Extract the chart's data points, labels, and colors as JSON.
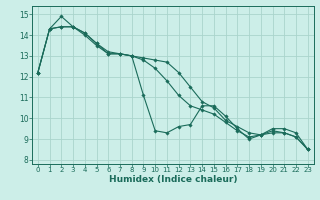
{
  "xlabel": "Humidex (Indice chaleur)",
  "background_color": "#cceee8",
  "grid_color": "#aad4cc",
  "line_color": "#1a6b5a",
  "xlim": [
    -0.5,
    23.5
  ],
  "ylim": [
    7.8,
    15.4
  ],
  "yticks": [
    8,
    9,
    10,
    11,
    12,
    13,
    14,
    15
  ],
  "xticks": [
    0,
    1,
    2,
    3,
    4,
    5,
    6,
    7,
    8,
    9,
    10,
    11,
    12,
    13,
    14,
    15,
    16,
    17,
    18,
    19,
    20,
    21,
    22,
    23
  ],
  "series": [
    [
      12.2,
      14.3,
      14.9,
      14.4,
      14.1,
      13.6,
      13.1,
      13.1,
      13.0,
      11.1,
      9.4,
      9.3,
      9.6,
      9.7,
      10.6,
      10.6,
      10.1,
      9.5,
      9.0,
      9.2,
      9.5,
      9.5,
      9.3,
      8.5
    ],
    [
      12.2,
      14.3,
      14.4,
      14.4,
      14.1,
      13.6,
      13.2,
      13.1,
      13.0,
      12.9,
      12.8,
      12.7,
      12.2,
      11.5,
      10.8,
      10.5,
      9.9,
      9.6,
      9.3,
      9.2,
      9.3,
      9.3,
      9.1,
      8.5
    ],
    [
      12.2,
      14.3,
      14.4,
      14.4,
      14.0,
      13.5,
      13.1,
      13.1,
      13.0,
      12.8,
      12.4,
      11.8,
      11.1,
      10.6,
      10.4,
      10.2,
      9.8,
      9.4,
      9.1,
      9.2,
      9.4,
      9.3,
      9.1,
      8.5
    ]
  ]
}
